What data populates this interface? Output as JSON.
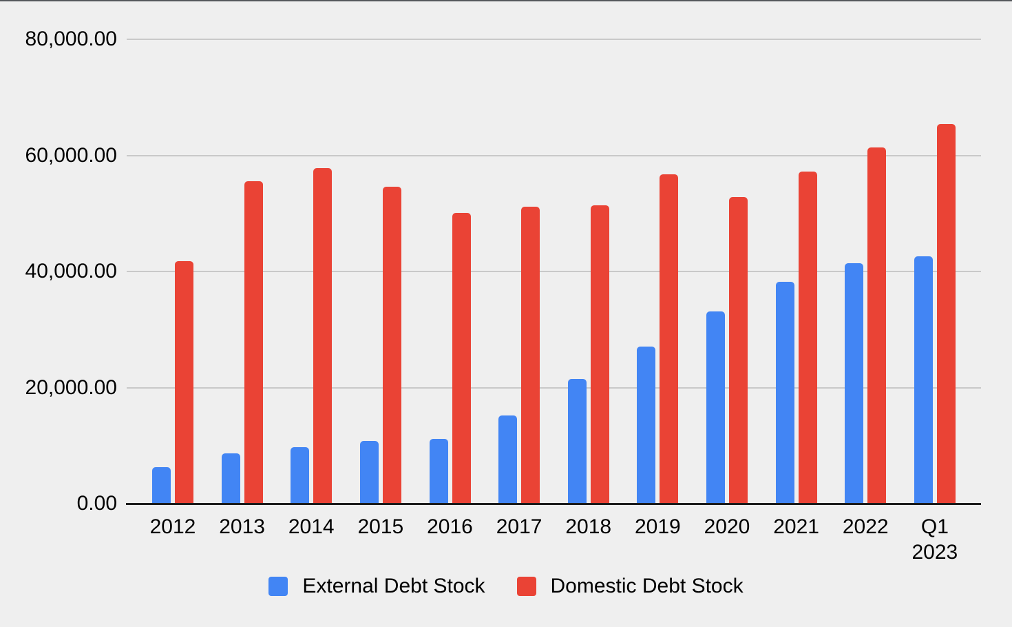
{
  "window": {
    "top_edge_color": "#55585c",
    "background_color": "#efefef"
  },
  "chart_data": {
    "type": "bar",
    "title": "",
    "xlabel": "",
    "ylabel": "",
    "categories": [
      {
        "lines": [
          "2012"
        ]
      },
      {
        "lines": [
          "2013"
        ]
      },
      {
        "lines": [
          "2014"
        ]
      },
      {
        "lines": [
          "2015"
        ]
      },
      {
        "lines": [
          "2016"
        ]
      },
      {
        "lines": [
          "2017"
        ]
      },
      {
        "lines": [
          "2018"
        ]
      },
      {
        "lines": [
          "2019"
        ]
      },
      {
        "lines": [
          "2020"
        ]
      },
      {
        "lines": [
          "2021"
        ]
      },
      {
        "lines": [
          "2022"
        ]
      },
      {
        "lines": [
          "Q1",
          "2023"
        ]
      }
    ],
    "series": [
      {
        "name": "External Debt Stock",
        "color": "#4285F4",
        "values": [
          6350,
          8700,
          9700,
          10750,
          11100,
          15250,
          21500,
          27100,
          33150,
          38250,
          41450,
          42600
        ]
      },
      {
        "name": "Domestic Debt Stock",
        "color": "#EA4335",
        "values": [
          41800,
          55500,
          57800,
          54600,
          50100,
          51200,
          51400,
          56750,
          52850,
          57250,
          61400,
          65400
        ]
      }
    ],
    "ylim": [
      0,
      80000
    ],
    "y_ticks": [
      {
        "value": 0,
        "label": "0.00"
      },
      {
        "value": 20000,
        "label": "20,000.00"
      },
      {
        "value": 40000,
        "label": "40,000.00"
      },
      {
        "value": 60000,
        "label": "60,000.00"
      },
      {
        "value": 80000,
        "label": "80,000.00"
      }
    ],
    "grid": true,
    "gridline_color": "#c9c9c9",
    "axis_line_color": "#1c1c1c",
    "text_color": "#000000",
    "legend_position": "bottom"
  }
}
